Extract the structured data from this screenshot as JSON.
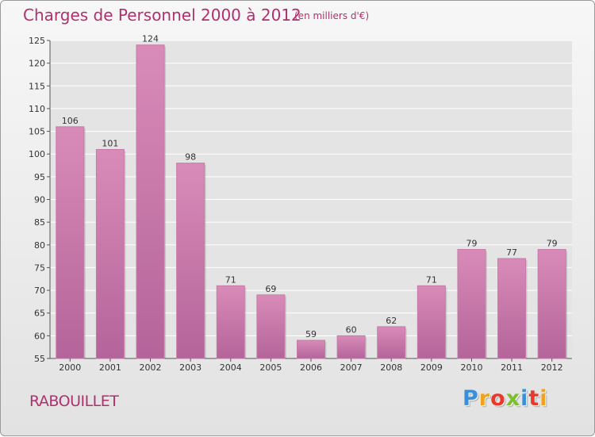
{
  "chart_data": {
    "type": "bar",
    "title": "Charges de Personnel 2000 à 2012",
    "subtitle": "(en milliers d'€)",
    "categories": [
      "2000",
      "2001",
      "2002",
      "2003",
      "2004",
      "2005",
      "2006",
      "2007",
      "2008",
      "2009",
      "2010",
      "2011",
      "2012"
    ],
    "values": [
      106,
      101,
      124,
      98,
      71,
      69,
      59,
      60,
      62,
      71,
      79,
      77,
      79
    ],
    "ylim": [
      55,
      125
    ],
    "yticks": [
      55,
      60,
      65,
      70,
      75,
      80,
      85,
      90,
      95,
      100,
      105,
      110,
      115,
      120,
      125
    ],
    "xlabel": "",
    "ylabel": "",
    "grid": true,
    "bar_color": "#d98bb8",
    "bar_color_dark": "#b4649a"
  },
  "footer": {
    "commune": "RABOUILLET",
    "brand_letters": [
      "P",
      "r",
      "o",
      "x",
      "i",
      "t",
      "i"
    ],
    "brand_colors": [
      "#3a8fd8",
      "#f2a21a",
      "#e8392a",
      "#7bbf2a",
      "#3a8fd8",
      "#e8392a",
      "#f2a21a"
    ]
  },
  "colors": {
    "title": "#b0306e",
    "grid": "#ffffff"
  }
}
